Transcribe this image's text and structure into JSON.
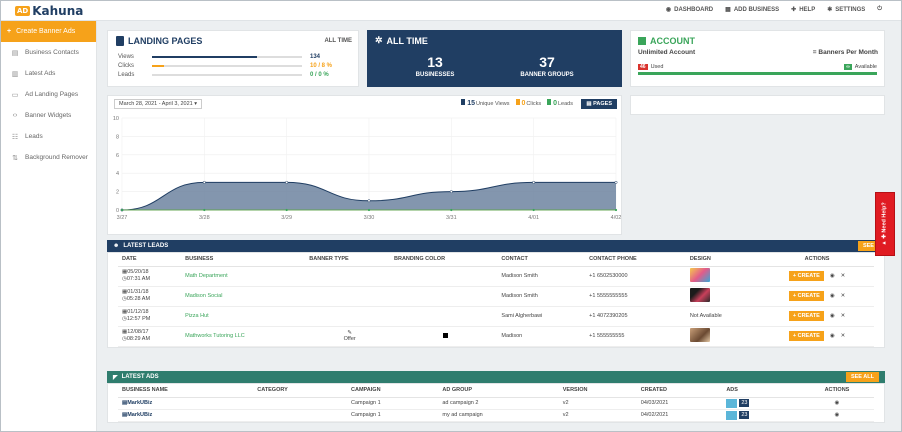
{
  "app": {
    "logo_mark": "AD",
    "logo_text": "Kahuna"
  },
  "topnav": [
    {
      "icon": "dashboard-icon",
      "glyph": "◉",
      "label": "DASHBOARD"
    },
    {
      "icon": "add-business-icon",
      "glyph": "▦",
      "label": "ADD BUSINESS"
    },
    {
      "icon": "help-icon",
      "glyph": "✚",
      "label": "HELP"
    },
    {
      "icon": "settings-icon",
      "glyph": "✱",
      "label": "SETTINGS"
    },
    {
      "icon": "power-icon",
      "glyph": "⏻",
      "label": ""
    }
  ],
  "sidebar": {
    "create": "Create Banner Ads",
    "items": [
      {
        "label": "Business Contacts",
        "glyph": "▤"
      },
      {
        "label": "Latest Ads",
        "glyph": "▥"
      },
      {
        "label": "Ad Landing Pages",
        "glyph": "▭"
      },
      {
        "label": "Banner Widgets",
        "glyph": "‹›"
      },
      {
        "label": "Leads",
        "glyph": "☷"
      },
      {
        "label": "Background Remover",
        "glyph": "⇅"
      }
    ]
  },
  "landing": {
    "title": "LANDING PAGES",
    "period": "ALL TIME",
    "rows": [
      {
        "label": "Views",
        "value": "134",
        "fill": 0.7,
        "color": "#203e63"
      },
      {
        "label": "Clicks",
        "value": "10 / 8 %",
        "fill": 0.08,
        "color": "#f6a21a"
      },
      {
        "label": "Leads",
        "value": "0 / 0 %",
        "fill": 0,
        "color": "#3aa55a"
      }
    ]
  },
  "alltime": {
    "title": "ALL TIME",
    "businesses": "13",
    "businesses_label": "BUSINESSES",
    "groups": "37",
    "groups_label": "BANNER GROUPS"
  },
  "account": {
    "title": "ACCOUNT",
    "plan": "Unlimited Account",
    "per": "= Banners Per Month",
    "used_count": "46",
    "used_label": "Used",
    "avail_count": "∞",
    "avail_label": "Available"
  },
  "chart_controls": {
    "date_range": "March 28, 2021 - April 3, 2021 ▾",
    "views_count": "15",
    "views_label": "Unique Views",
    "clicks_count": "0",
    "clicks_label": "Clicks",
    "leads_count": "0",
    "leads_label": "Leads",
    "pages_button": "PAGES"
  },
  "chart_data": {
    "type": "area",
    "x": [
      "3/27",
      "3/28",
      "3/29",
      "3/30",
      "3/31",
      "4/01",
      "4/02"
    ],
    "yticks": [
      "0",
      "2",
      "4",
      "6",
      "8",
      "10"
    ],
    "ylim": [
      0,
      10
    ],
    "series": [
      {
        "name": "Unique Views",
        "values": [
          0,
          3,
          3,
          1,
          2,
          3,
          3
        ],
        "color": "#203e63"
      },
      {
        "name": "Clicks",
        "values": [
          0,
          0,
          0,
          0,
          0,
          0,
          0
        ],
        "color": "#f6a21a"
      },
      {
        "name": "Leads",
        "values": [
          0,
          0,
          0,
          0,
          0,
          0,
          0
        ],
        "color": "#3aa55a"
      }
    ]
  },
  "leads": {
    "title": "LATEST LEADS",
    "see_all": "SEE ALL",
    "headers": [
      "DATE",
      "BUSINESS",
      "BANNER TYPE",
      "BRANDING COLOR",
      "CONTACT",
      "CONTACT PHONE",
      "DESIGN",
      "ACTIONS"
    ],
    "create_label": "+ CREATE",
    "rows": [
      {
        "date": "05/20/18",
        "time": "07:31 AM",
        "business": "Math Department",
        "banner": "",
        "color": "",
        "contact": "Madison Smith",
        "phone": "+1 6502530000",
        "design": "thumb-1",
        "design_text": ""
      },
      {
        "date": "01/31/18",
        "time": "05:28 AM",
        "business": "Madison Social",
        "banner": "",
        "color": "",
        "contact": "Madison Smith",
        "phone": "+1 5555555555",
        "design": "thumb-2",
        "design_text": ""
      },
      {
        "date": "01/12/18",
        "time": "12:57 PM",
        "business": "Pizza Hut",
        "banner": "",
        "color": "",
        "contact": "Sami Algherbawi",
        "phone": "+1 4072390205",
        "design": "",
        "design_text": "Not Available"
      },
      {
        "date": "12/08/17",
        "time": "08:29 AM",
        "business": "Mathworks Tutoring LLC",
        "banner": "Offer",
        "color": "#000000",
        "contact": "Madison",
        "phone": "+1 555555555",
        "design": "thumb-3",
        "design_text": ""
      }
    ]
  },
  "ads": {
    "title": "LATEST ADS",
    "see_all": "SEE ALL",
    "headers": [
      "BUSINESS NAME",
      "CATEGORY",
      "CAMPAIGN",
      "AD GROUP",
      "VERSION",
      "CREATED",
      "ADS",
      "ACTIONS"
    ],
    "rows": [
      {
        "name": "MarkUBiz",
        "category": "",
        "campaign": "Campaign 1",
        "group": "ad campaign 2",
        "version": "v2",
        "created": "04/03/2021",
        "ads": "23"
      },
      {
        "name": "MarkUBiz",
        "category": "",
        "campaign": "Campaign 1",
        "group": "my ad campaign",
        "version": "v2",
        "created": "04/02/2021",
        "ads": "23"
      }
    ]
  },
  "help_tab": "Need Help?"
}
